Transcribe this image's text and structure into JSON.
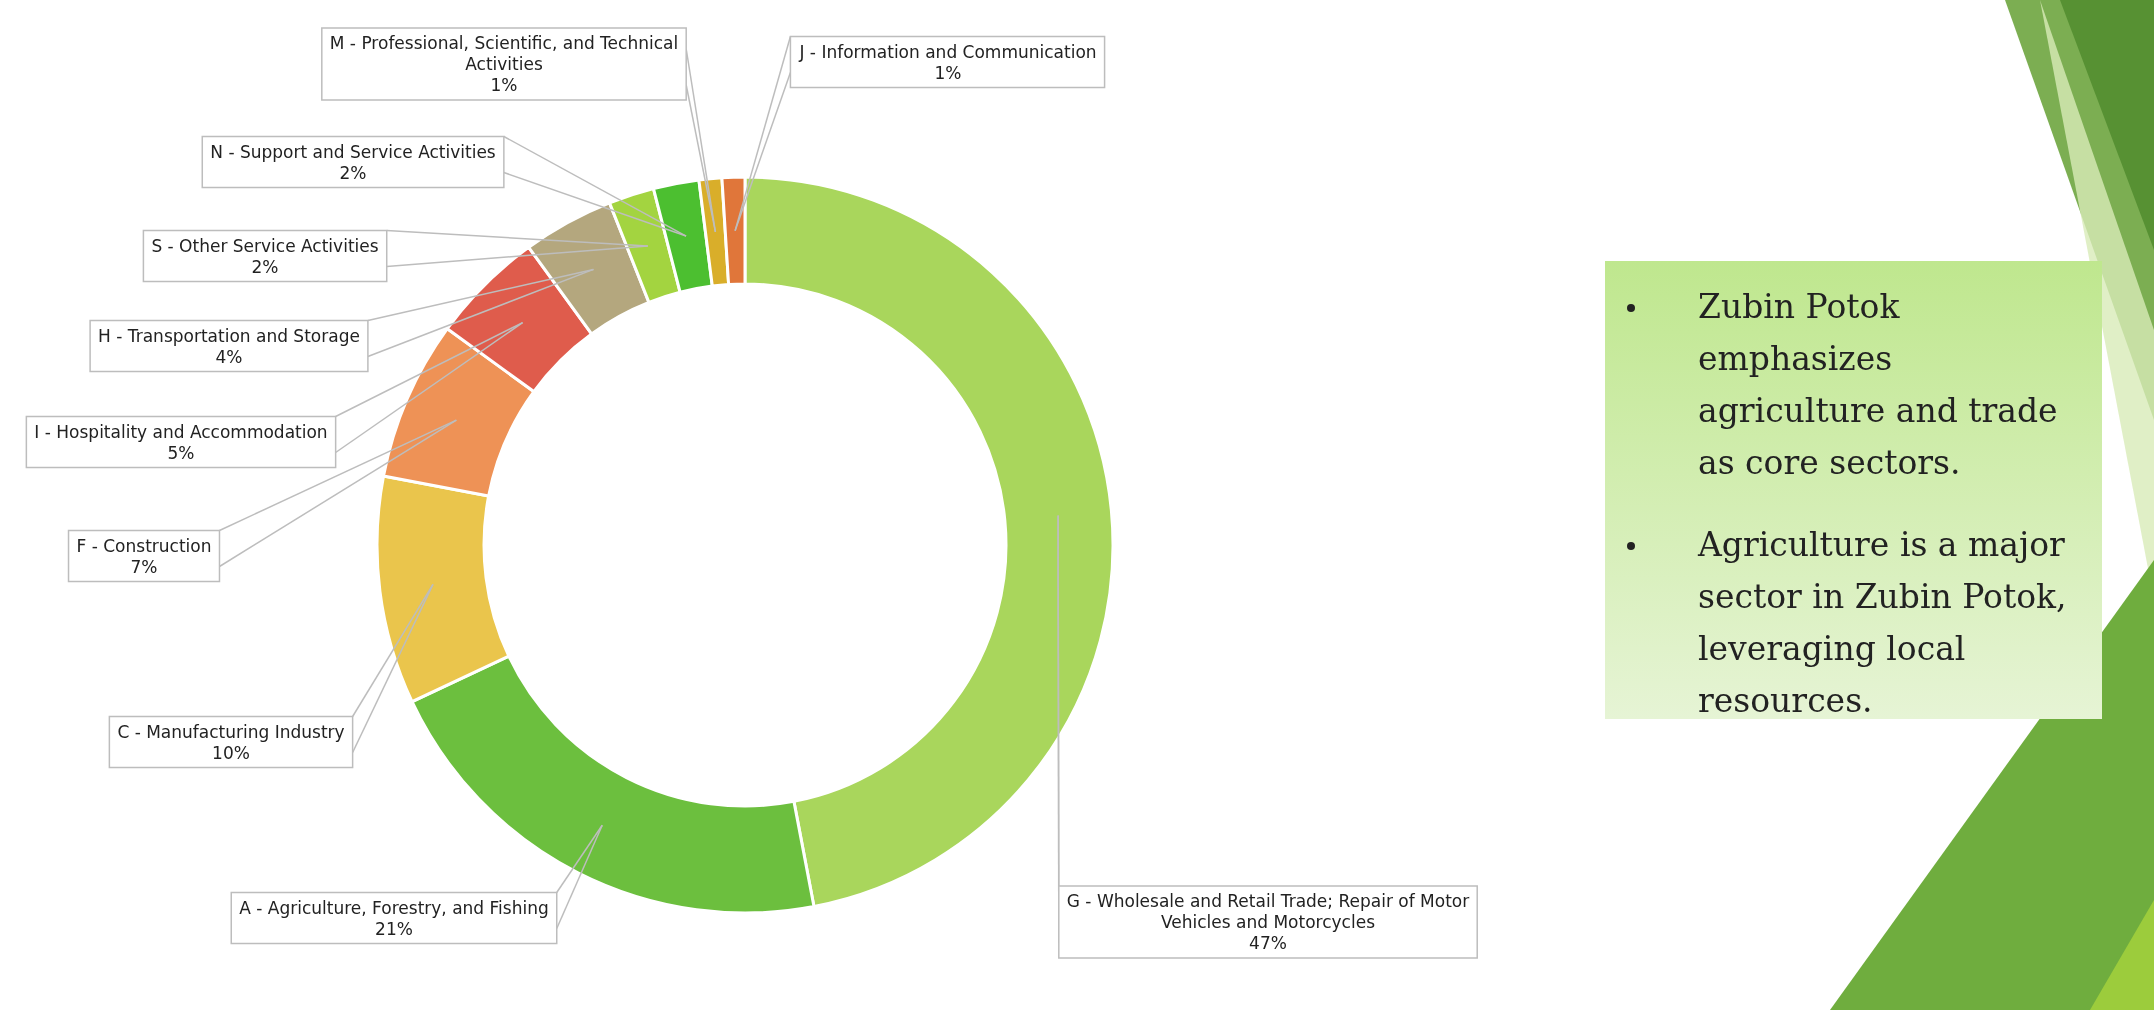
{
  "chart_data": {
    "type": "donut",
    "categories": [
      "G - Wholesale and Retail Trade; Repair of Motor Vehicles and Motorcycles",
      "A - Agriculture, Forestry, and Fishing",
      "C - Manufacturing Industry",
      "F - Construction",
      "I - Hospitality and Accommodation",
      "H - Transportation and Storage",
      "S - Other Service Activities",
      "N - Support and Service Activities",
      "M - Professional, Scientific, and Technical Activities",
      "J - Information and Communication"
    ],
    "values": [
      47,
      21,
      10,
      7,
      5,
      4,
      2,
      2,
      1,
      1
    ],
    "value_labels": [
      "47%",
      "21%",
      "10%",
      "7%",
      "5%",
      "4%",
      "2%",
      "2%",
      "1%",
      "1%"
    ],
    "colors": [
      "#a9d65c",
      "#6cbf3e",
      "#eac54c",
      "#ee9256",
      "#df5c4c",
      "#b4a77e",
      "#a3d440",
      "#4cbf30",
      "#d9ae2a",
      "#e0763a"
    ],
    "annotations": [
      "Zubin Potok emphasizes agriculture and trade as core sectors.",
      "Agriculture is a major sector in Zubin Potok, leveraging local resources."
    ],
    "legend": false
  }
}
